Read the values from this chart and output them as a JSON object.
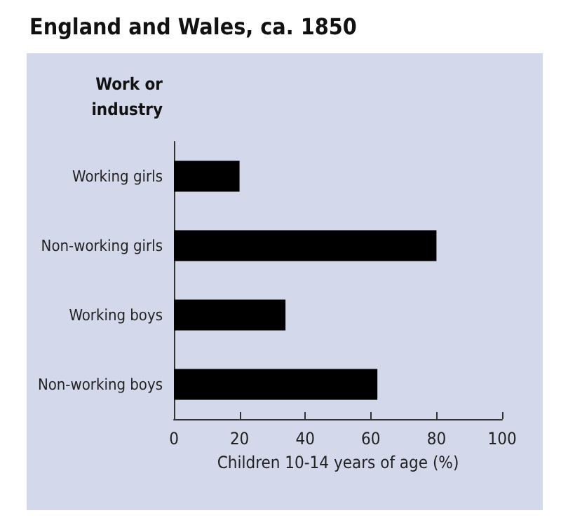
{
  "chart_data": {
    "type": "bar",
    "orientation": "horizontal",
    "title": "England and Wales, ca. 1850",
    "ylabel": "Work or\nindustry",
    "xlabel": "Children 10-14 years of age (%)",
    "categories": [
      "Working girls",
      "Non-working girls",
      "Working boys",
      "Non-working boys"
    ],
    "values": [
      20,
      80,
      34,
      62
    ],
    "color": "#000000",
    "xlim": [
      0,
      100
    ],
    "xticks": [
      0,
      20,
      40,
      60,
      80,
      100
    ],
    "grid": false
  }
}
